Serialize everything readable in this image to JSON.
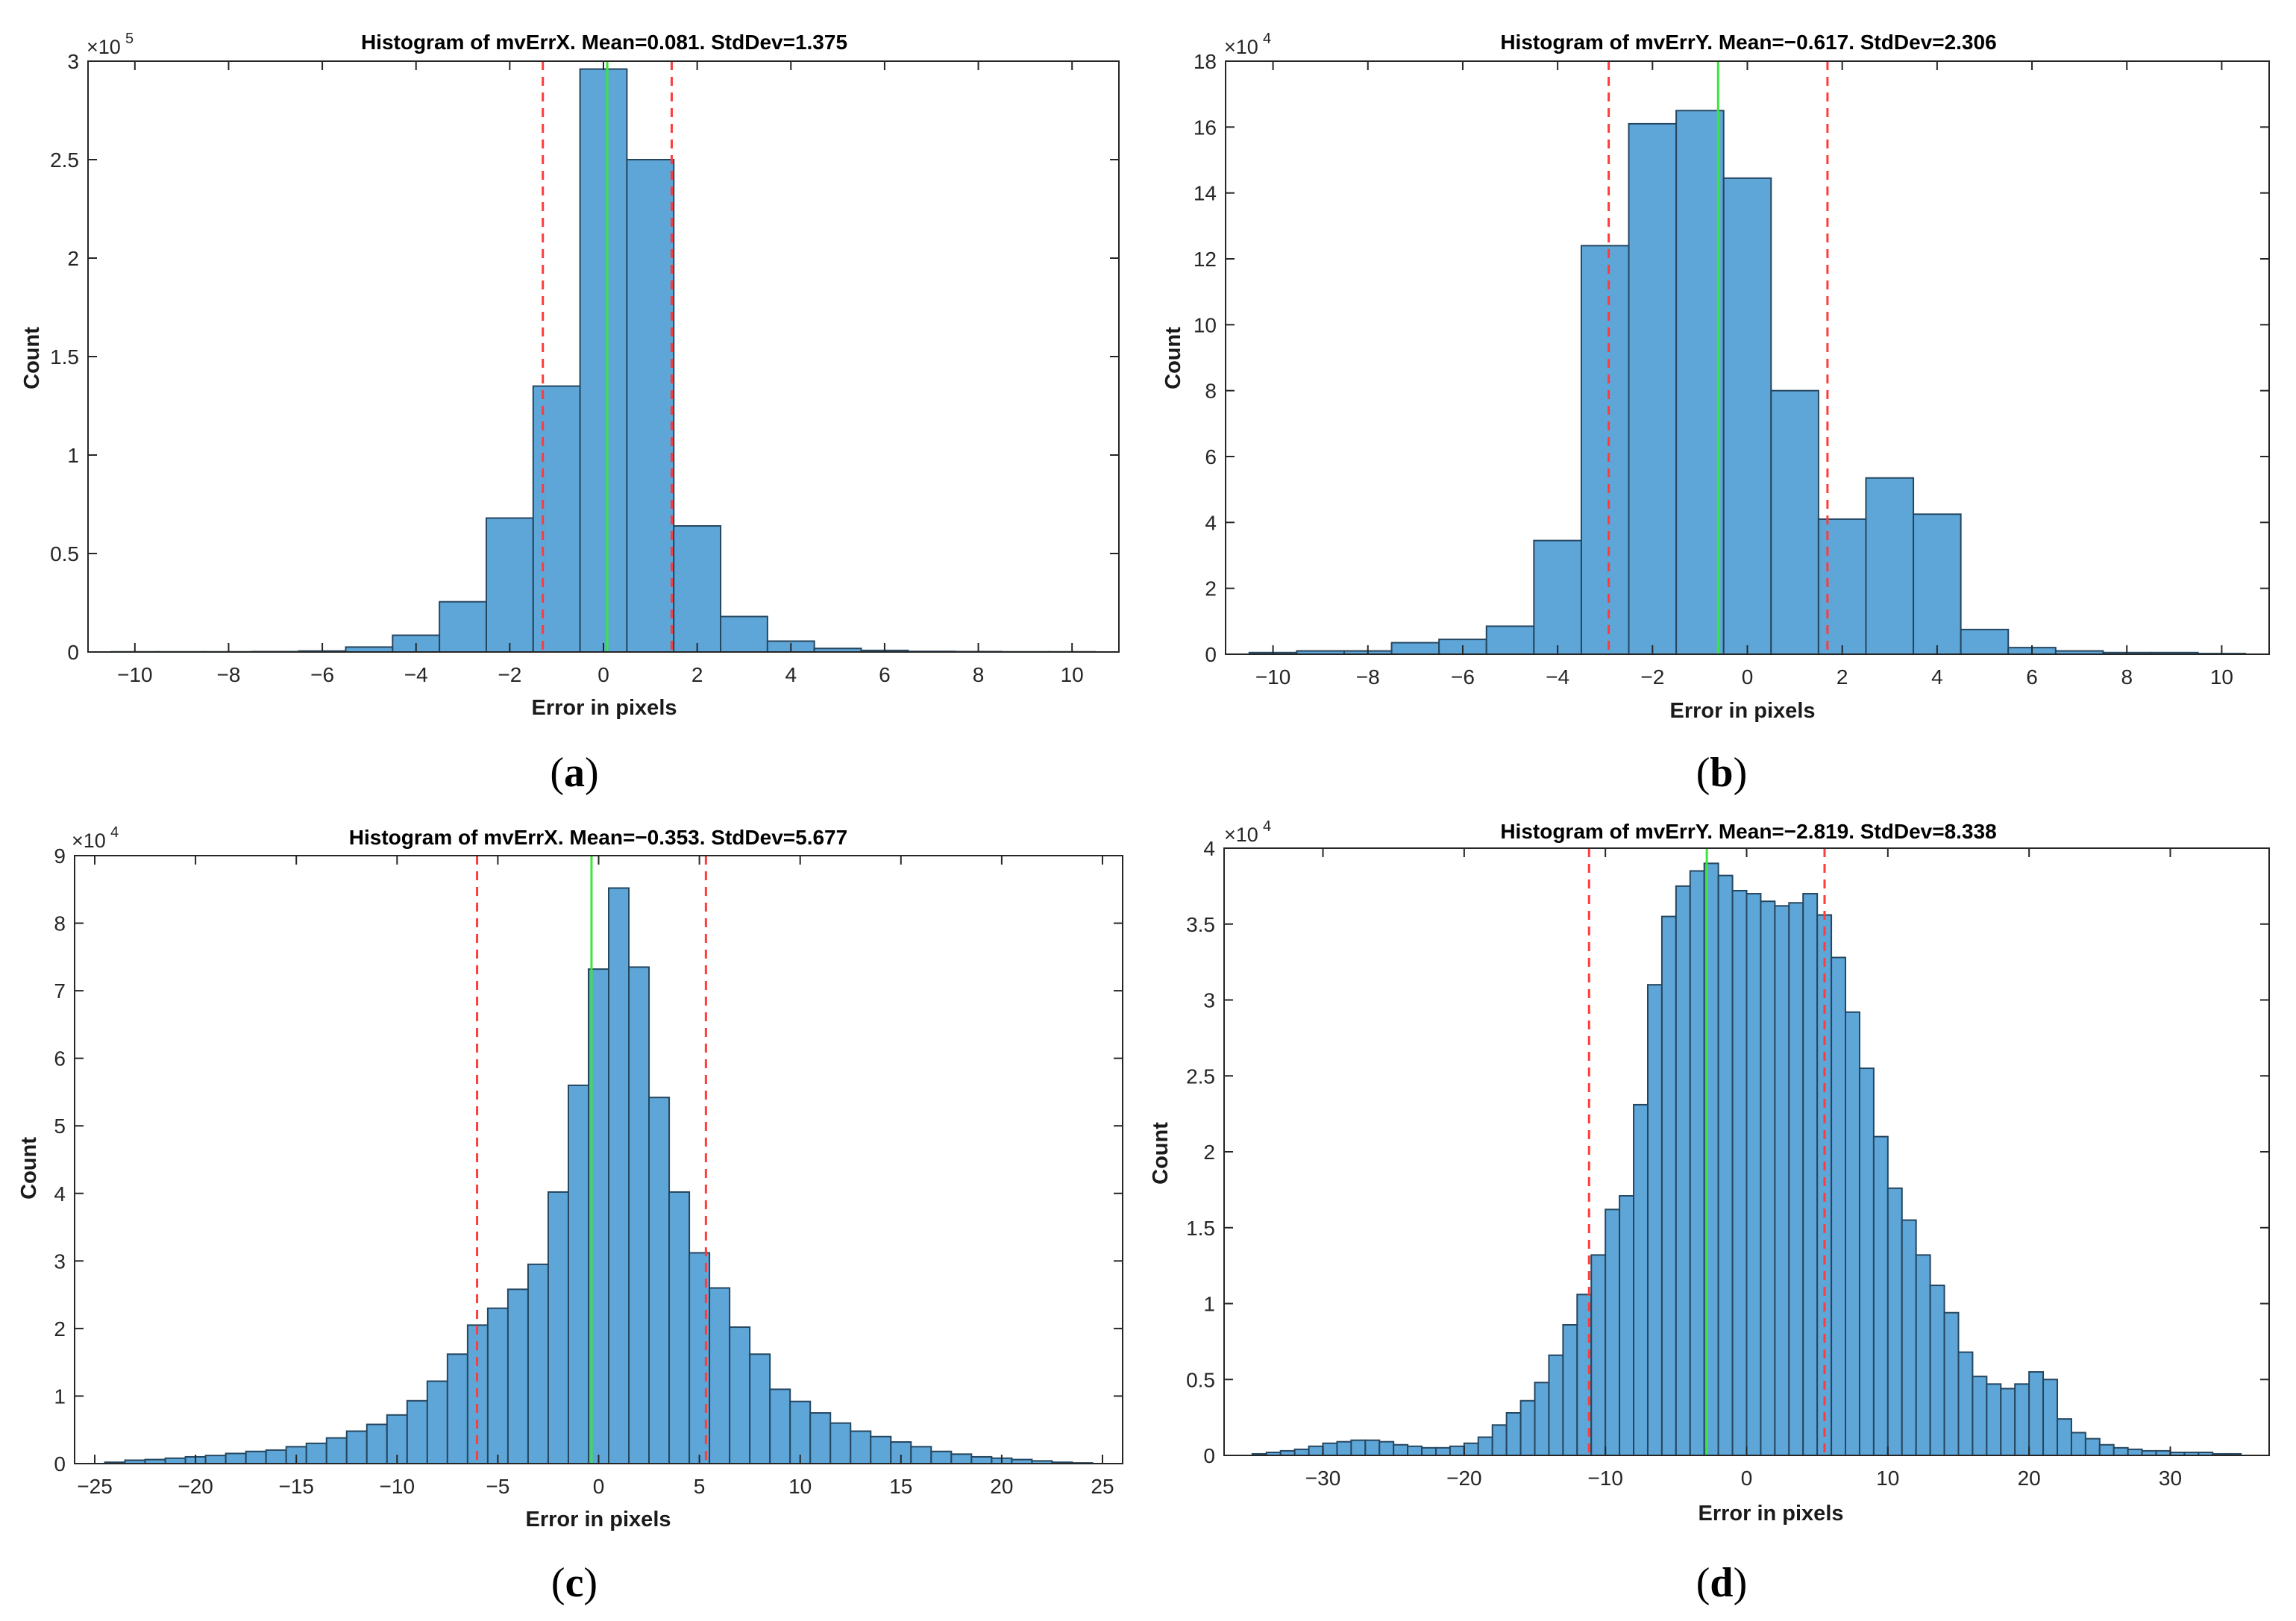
{
  "figure": {
    "panel_labels": [
      "a",
      "b",
      "c",
      "d"
    ]
  },
  "chart_data": [
    {
      "type": "bar",
      "panel": "a",
      "title": "Histogram of mvErrX.  Mean=0.081. StdDev=1.375",
      "xlabel": "Error in pixels",
      "ylabel": "Count",
      "multiplier": {
        "base": "×10",
        "exponent": "5"
      },
      "xlim": [
        -11,
        11
      ],
      "ylim": [
        0,
        3
      ],
      "xticks": [
        -10,
        -8,
        -6,
        -4,
        -2,
        0,
        2,
        4,
        6,
        8,
        10
      ],
      "xtick_labels": [
        "−10",
        "−8",
        "−6",
        "−4",
        "−2",
        "0",
        "2",
        "4",
        "6",
        "8",
        "10"
      ],
      "yticks": [
        0,
        0.5,
        1,
        1.5,
        2,
        2.5,
        3
      ],
      "ytick_labels": [
        "0",
        "0.5",
        "1",
        "1.5",
        "2",
        "2.5",
        "3"
      ],
      "bin_edges": [
        -10.5,
        -9.5,
        -8.5,
        -7.5,
        -6.5,
        -5.5,
        -4.5,
        -3.5,
        -2.5,
        -1.5,
        -0.5,
        0.5,
        1.5,
        2.5,
        3.5,
        4.5,
        5.5,
        6.5,
        7.5,
        8.5,
        9.5,
        10.5
      ],
      "counts": [
        0.001,
        0.001,
        0.001,
        0.002,
        0.005,
        0.025,
        0.085,
        0.255,
        0.68,
        1.35,
        2.96,
        2.5,
        0.64,
        0.18,
        0.055,
        0.018,
        0.008,
        0.003,
        0.002,
        0.001,
        0.001
      ],
      "mean": 0.081,
      "std_lines": [
        -1.294,
        1.456
      ]
    },
    {
      "type": "bar",
      "panel": "b",
      "title": "Histogram of mvErrY.  Mean=−0.617. StdDev=2.306",
      "xlabel": "Error in pixels",
      "ylabel": "Count",
      "multiplier": {
        "base": "×10",
        "exponent": "4"
      },
      "xlim": [
        -11,
        11
      ],
      "ylim": [
        0,
        18
      ],
      "xticks": [
        -10,
        -8,
        -6,
        -4,
        -2,
        0,
        2,
        4,
        6,
        8,
        10
      ],
      "xtick_labels": [
        "−10",
        "−8",
        "−6",
        "−4",
        "−2",
        "0",
        "2",
        "4",
        "6",
        "8",
        "10"
      ],
      "yticks": [
        0,
        2,
        4,
        6,
        8,
        10,
        12,
        14,
        16,
        18
      ],
      "ytick_labels": [
        "0",
        "2",
        "4",
        "6",
        "8",
        "10",
        "12",
        "14",
        "16",
        "18"
      ],
      "bin_edges": [
        -10.5,
        -9.5,
        -8.5,
        -7.5,
        -6.5,
        -5.5,
        -4.5,
        -3.5,
        -2.5,
        -1.5,
        -0.5,
        0.5,
        1.5,
        2.5,
        3.5,
        4.5,
        5.5,
        6.5,
        7.5,
        8.5,
        9.5,
        10.5
      ],
      "counts": [
        0.05,
        0.1,
        0.1,
        0.35,
        0.45,
        0.85,
        3.45,
        12.4,
        16.1,
        16.5,
        14.45,
        8.0,
        4.1,
        5.35,
        4.25,
        0.75,
        0.2,
        0.1,
        0.05,
        0.05,
        0.02
      ],
      "mean": -0.617,
      "std_lines": [
        -2.923,
        1.689
      ]
    },
    {
      "type": "bar",
      "panel": "c",
      "title": "Histogram of mvErrX.  Mean=−0.353. StdDev=5.677",
      "xlabel": "Error in pixels",
      "ylabel": "Count",
      "multiplier": {
        "base": "×10",
        "exponent": "4"
      },
      "xlim": [
        -26,
        26
      ],
      "ylim": [
        0,
        9
      ],
      "xticks": [
        -25,
        -20,
        -15,
        -10,
        -5,
        0,
        5,
        10,
        15,
        20,
        25
      ],
      "xtick_labels": [
        "−25",
        "−20",
        "−15",
        "−10",
        "−5",
        "0",
        "5",
        "10",
        "15",
        "20",
        "25"
      ],
      "yticks": [
        0,
        1,
        2,
        3,
        4,
        5,
        6,
        7,
        8,
        9
      ],
      "ytick_labels": [
        "0",
        "1",
        "2",
        "3",
        "4",
        "5",
        "6",
        "7",
        "8",
        "9"
      ],
      "bin_edges": [
        -24.5,
        -23.5,
        -22.5,
        -21.5,
        -20.5,
        -19.5,
        -18.5,
        -17.5,
        -16.5,
        -15.5,
        -14.5,
        -13.5,
        -12.5,
        -11.5,
        -10.5,
        -9.5,
        -8.5,
        -7.5,
        -6.5,
        -5.5,
        -4.5,
        -3.5,
        -2.5,
        -1.5,
        -0.5,
        0.5,
        1.5,
        2.5,
        3.5,
        4.5,
        5.5,
        6.5,
        7.5,
        8.5,
        9.5,
        10.5,
        11.5,
        12.5,
        13.5,
        14.5,
        15.5,
        16.5,
        17.5,
        18.5,
        19.5,
        20.5,
        21.5,
        22.5,
        23.5,
        24.5
      ],
      "counts": [
        0.02,
        0.05,
        0.06,
        0.08,
        0.1,
        0.12,
        0.15,
        0.18,
        0.2,
        0.25,
        0.3,
        0.38,
        0.48,
        0.58,
        0.72,
        0.93,
        1.22,
        1.62,
        2.05,
        2.3,
        2.58,
        2.95,
        4.02,
        5.6,
        7.32,
        8.52,
        7.35,
        5.42,
        4.02,
        3.12,
        2.6,
        2.02,
        1.62,
        1.1,
        0.92,
        0.75,
        0.6,
        0.48,
        0.4,
        0.32,
        0.25,
        0.18,
        0.14,
        0.1,
        0.08,
        0.06,
        0.04,
        0.02,
        0.01
      ],
      "mean": -0.353,
      "std_lines": [
        -6.03,
        5.324
      ]
    },
    {
      "type": "bar",
      "panel": "d",
      "title": "Histogram of mvErrY.  Mean=−2.819. StdDev=8.338",
      "xlabel": "Error in pixels",
      "ylabel": "Count",
      "multiplier": {
        "base": "×10",
        "exponent": "4"
      },
      "xlim": [
        -37,
        37
      ],
      "ylim": [
        0,
        4
      ],
      "xticks": [
        -30,
        -20,
        -10,
        0,
        10,
        20,
        30
      ],
      "xtick_labels": [
        "−30",
        "−20",
        "−10",
        "0",
        "10",
        "20",
        "30"
      ],
      "yticks": [
        0,
        0.5,
        1,
        1.5,
        2,
        2.5,
        3,
        3.5,
        4
      ],
      "ytick_labels": [
        "0",
        "0.5",
        "1",
        "1.5",
        "2",
        "2.5",
        "3",
        "3.5",
        "4"
      ],
      "bin_edges": [
        -35,
        -34,
        -33,
        -32,
        -31,
        -30,
        -29,
        -28,
        -27,
        -26,
        -25,
        -24,
        -23,
        -22,
        -21,
        -20,
        -19,
        -18,
        -17,
        -16,
        -15,
        -14,
        -13,
        -12,
        -11,
        -10,
        -9,
        -8,
        -7,
        -6,
        -5,
        -4,
        -3,
        -2,
        -1,
        0,
        1,
        2,
        3,
        4,
        5,
        6,
        7,
        8,
        9,
        10,
        11,
        12,
        13,
        14,
        15,
        16,
        17,
        18,
        19,
        20,
        21,
        22,
        23,
        24,
        25,
        26,
        27,
        28,
        29,
        30,
        31,
        32,
        33,
        34,
        35
      ],
      "counts": [
        0.01,
        0.02,
        0.03,
        0.04,
        0.06,
        0.08,
        0.09,
        0.1,
        0.1,
        0.09,
        0.07,
        0.06,
        0.05,
        0.05,
        0.06,
        0.08,
        0.12,
        0.2,
        0.28,
        0.36,
        0.48,
        0.66,
        0.86,
        1.06,
        1.32,
        1.62,
        1.71,
        2.31,
        3.1,
        3.55,
        3.75,
        3.85,
        3.9,
        3.82,
        3.72,
        3.7,
        3.65,
        3.62,
        3.64,
        3.7,
        3.56,
        3.28,
        2.92,
        2.55,
        2.1,
        1.76,
        1.55,
        1.32,
        1.12,
        0.94,
        0.68,
        0.52,
        0.47,
        0.44,
        0.47,
        0.55,
        0.5,
        0.24,
        0.15,
        0.11,
        0.07,
        0.05,
        0.04,
        0.03,
        0.03,
        0.02,
        0.02,
        0.02,
        0.01,
        0.01
      ],
      "mean": -2.819,
      "std_lines": [
        -11.157,
        5.519
      ]
    }
  ]
}
